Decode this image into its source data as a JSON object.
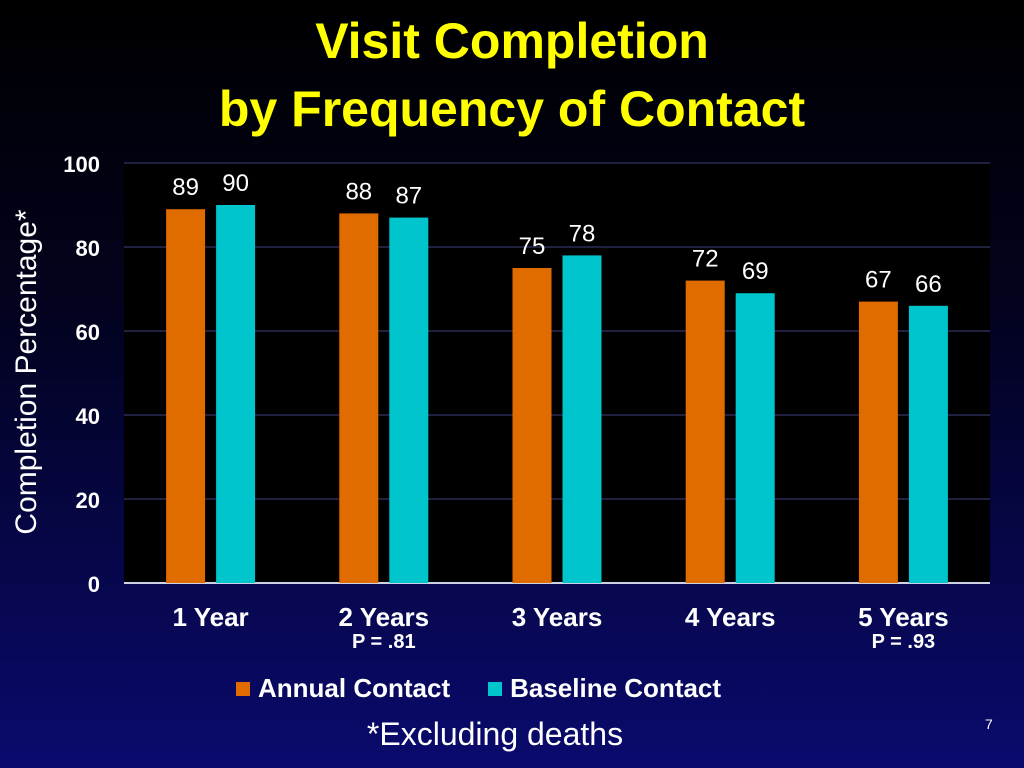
{
  "slide": {
    "title_lines": [
      "Visit Completion",
      "by Frequency of Contact"
    ],
    "footnote": "*Excluding deaths",
    "page_number": "7"
  },
  "colors": {
    "annual": "#e06c00",
    "baseline": "#00c5cc",
    "title": "#ffff00"
  },
  "chart_data": {
    "type": "bar",
    "categories": [
      "1 Year",
      "2 Years",
      "3 Years",
      "4 Years",
      "5 Years"
    ],
    "category_notes": [
      "",
      "P = .81",
      "",
      "",
      "P = .93"
    ],
    "series": [
      {
        "name": "Annual Contact",
        "values": [
          89,
          88,
          75,
          72,
          67
        ]
      },
      {
        "name": "Baseline Contact",
        "values": [
          90,
          87,
          78,
          69,
          66
        ]
      }
    ],
    "ylabel": "Completion Percentage*",
    "ylim": [
      0,
      100
    ],
    "yticks": [
      0,
      20,
      40,
      60,
      80,
      100
    ],
    "grid": true,
    "legend_position": "bottom"
  }
}
